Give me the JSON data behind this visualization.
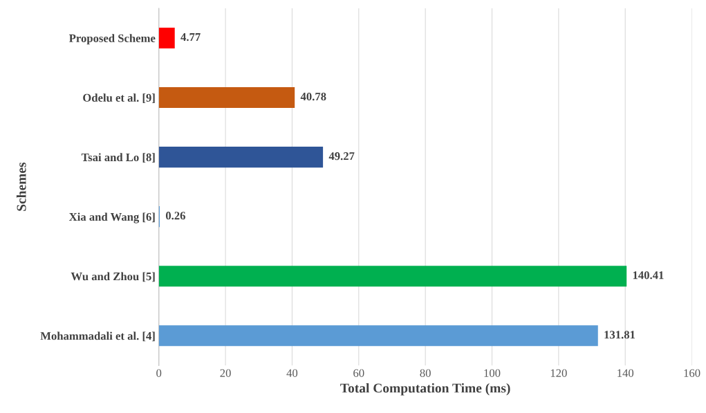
{
  "chart_data": {
    "type": "bar",
    "orientation": "horizontal",
    "xlabel": "Total Computation Time (ms)",
    "ylabel": "Schemes",
    "categories": [
      "Proposed Scheme",
      "Odelu et al. [9]",
      "Tsai and Lo [8]",
      "Xia and Wang [6]",
      "Wu and Zhou [5]",
      "Mohammadali et al. [4]"
    ],
    "values": [
      4.77,
      40.78,
      49.27,
      0.26,
      140.41,
      131.81
    ],
    "colors": [
      "#ff0000",
      "#c55a11",
      "#2f5597",
      "#5b9bd5",
      "#00b050",
      "#5b9bd5"
    ],
    "xlim": [
      0,
      160
    ],
    "xticks": [
      0,
      20,
      40,
      60,
      80,
      100,
      120,
      140,
      160
    ],
    "grid": "x",
    "data_labels": true
  }
}
